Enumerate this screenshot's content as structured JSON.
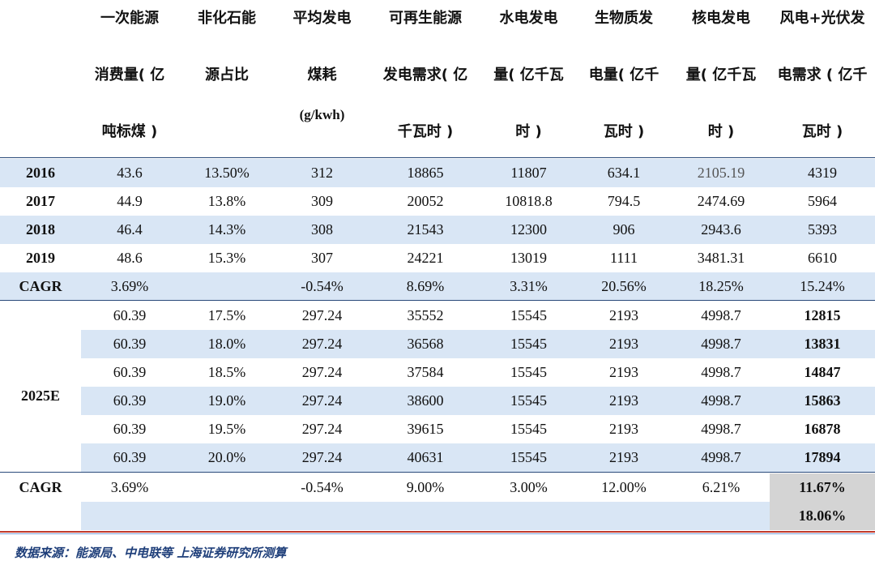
{
  "columns": [
    {
      "l1": "",
      "l2": "",
      "l3": ""
    },
    {
      "l1": "一次能源",
      "l2": "消费量( 亿",
      "l3": "吨标煤 )"
    },
    {
      "l1": "非化石能",
      "l2": "源占比",
      "l3": ""
    },
    {
      "l1": "平均发电",
      "l2": "煤耗",
      "l3": "(g/kwh)"
    },
    {
      "l1": "可再生能源",
      "l2": "发电需求( 亿",
      "l3": "千瓦时 )"
    },
    {
      "l1": "水电发电",
      "l2": "量( 亿千瓦",
      "l3": "时 )"
    },
    {
      "l1": "生物质发",
      "l2": "电量( 亿千",
      "l3": "瓦时 )"
    },
    {
      "l1": "核电发电",
      "l2": "量( 亿千瓦",
      "l3": "时 )"
    },
    {
      "l1": "风电+光伏发",
      "l2": "电需求 ( 亿千",
      "l3": "瓦时 )"
    }
  ],
  "historical_rows": [
    {
      "label": "2016",
      "cells": [
        "43.6",
        "13.50%",
        "312",
        "18865",
        "11807",
        "634.1",
        "2105.19",
        "4319"
      ]
    },
    {
      "label": "2017",
      "cells": [
        "44.9",
        "13.8%",
        "309",
        "20052",
        "10818.8",
        "794.5",
        "2474.69",
        "5964"
      ]
    },
    {
      "label": "2018",
      "cells": [
        "46.4",
        "14.3%",
        "308",
        "21543",
        "12300",
        "906",
        "2943.6",
        "5393"
      ]
    },
    {
      "label": "2019",
      "cells": [
        "48.6",
        "15.3%",
        "307",
        "24221",
        "13019",
        "1111",
        "3481.31",
        "6610"
      ]
    },
    {
      "label": "CAGR",
      "cells": [
        "3.69%",
        "",
        "-0.54%",
        "8.69%",
        "3.31%",
        "20.56%",
        "18.25%",
        "15.24%"
      ]
    }
  ],
  "forecast_label": "2025E",
  "forecast_rows": [
    [
      "60.39",
      "17.5%",
      "297.24",
      "35552",
      "15545",
      "2193",
      "4998.7",
      "12815"
    ],
    [
      "60.39",
      "18.0%",
      "297.24",
      "36568",
      "15545",
      "2193",
      "4998.7",
      "13831"
    ],
    [
      "60.39",
      "18.5%",
      "297.24",
      "37584",
      "15545",
      "2193",
      "4998.7",
      "14847"
    ],
    [
      "60.39",
      "19.0%",
      "297.24",
      "38600",
      "15545",
      "2193",
      "4998.7",
      "15863"
    ],
    [
      "60.39",
      "19.5%",
      "297.24",
      "39615",
      "15545",
      "2193",
      "4998.7",
      "16878"
    ],
    [
      "60.39",
      "20.0%",
      "297.24",
      "40631",
      "15545",
      "2193",
      "4998.7",
      "17894"
    ]
  ],
  "bottom_cagr": {
    "label": "CAGR",
    "cells": [
      "3.69%",
      "",
      "-0.54%",
      "9.00%",
      "3.00%",
      "12.00%",
      "6.21%",
      "11.67%"
    ],
    "extra": "18.06%"
  },
  "source": "数据来源：能源局、中电联等 上海证券研究所测算",
  "colors": {
    "band": "#d9e6f5",
    "highlight": "#d4d4d4",
    "rule": "#2a4a7a",
    "source": "#1f3f7a"
  }
}
